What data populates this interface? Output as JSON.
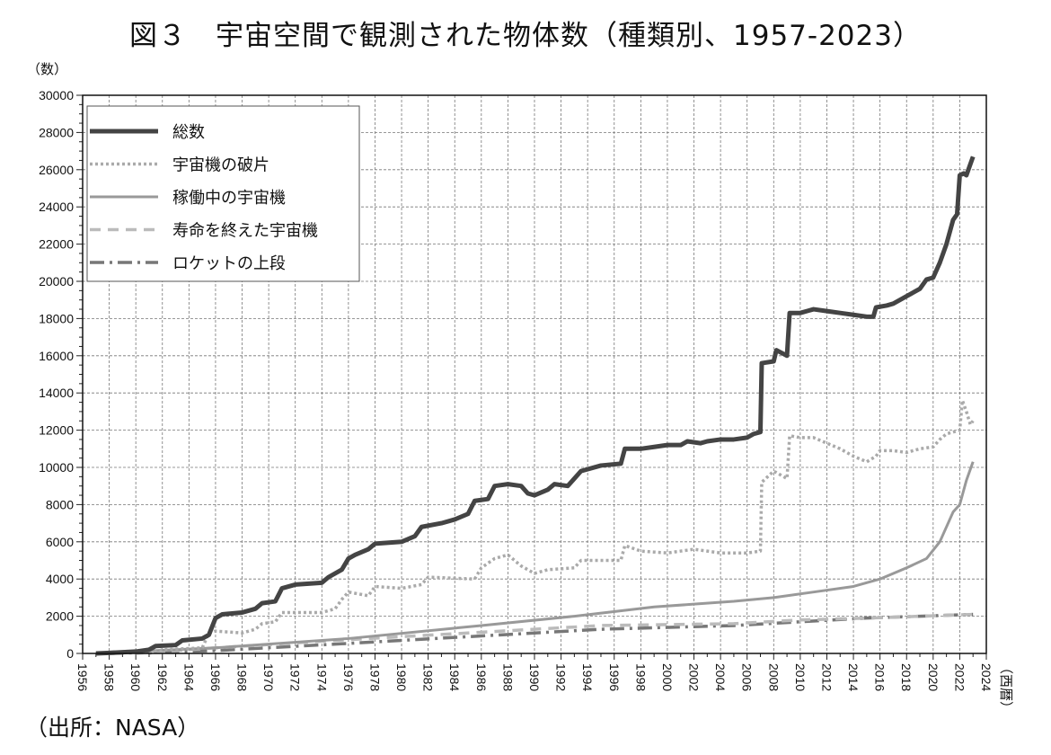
{
  "chart_data": {
    "type": "line",
    "title": "図３　宇宙空間で観測された物体数（種類別、1957-2023）",
    "ylabel": "（数）",
    "xlabel": "（西暦）",
    "source": "（出所：NASA）",
    "xlim": [
      1956,
      2024
    ],
    "ylim": [
      0,
      30000
    ],
    "xticks": [
      1956,
      1958,
      1960,
      1962,
      1964,
      1966,
      1968,
      1970,
      1972,
      1974,
      1976,
      1978,
      1980,
      1982,
      1984,
      1986,
      1988,
      1990,
      1992,
      1994,
      1996,
      1998,
      2000,
      2002,
      2004,
      2006,
      2008,
      2010,
      2012,
      2014,
      2016,
      2018,
      2020,
      2022,
      2024
    ],
    "yticks": [
      0,
      2000,
      4000,
      6000,
      8000,
      10000,
      12000,
      14000,
      16000,
      18000,
      20000,
      22000,
      24000,
      26000,
      28000,
      30000
    ],
    "grid": true,
    "legend_position": "top-left",
    "series": [
      {
        "name": "総数",
        "color": "#444444",
        "style": "solid-thick",
        "points": [
          [
            1957,
            0
          ],
          [
            1958,
            30
          ],
          [
            1960,
            100
          ],
          [
            1961,
            200
          ],
          [
            1961.5,
            400
          ],
          [
            1963,
            450
          ],
          [
            1963.5,
            700
          ],
          [
            1965,
            800
          ],
          [
            1965.5,
            1000
          ],
          [
            1966,
            1900
          ],
          [
            1966.5,
            2100
          ],
          [
            1968,
            2200
          ],
          [
            1969,
            2400
          ],
          [
            1969.5,
            2700
          ],
          [
            1970.5,
            2800
          ],
          [
            1971,
            3500
          ],
          [
            1972,
            3700
          ],
          [
            1974,
            3800
          ],
          [
            1974.5,
            4100
          ],
          [
            1975.5,
            4500
          ],
          [
            1976,
            5100
          ],
          [
            1976.5,
            5300
          ],
          [
            1977.5,
            5600
          ],
          [
            1978,
            5900
          ],
          [
            1980,
            6000
          ],
          [
            1981,
            6300
          ],
          [
            1981.5,
            6800
          ],
          [
            1983,
            7000
          ],
          [
            1984,
            7200
          ],
          [
            1985,
            7500
          ],
          [
            1985.5,
            8200
          ],
          [
            1986.5,
            8300
          ],
          [
            1987,
            9000
          ],
          [
            1988,
            9100
          ],
          [
            1989,
            9000
          ],
          [
            1989.5,
            8600
          ],
          [
            1990,
            8500
          ],
          [
            1991,
            8800
          ],
          [
            1991.5,
            9100
          ],
          [
            1992.5,
            9000
          ],
          [
            1993,
            9400
          ],
          [
            1993.5,
            9800
          ],
          [
            1995,
            10100
          ],
          [
            1996.5,
            10200
          ],
          [
            1996.8,
            11000
          ],
          [
            1998,
            11000
          ],
          [
            1999,
            11100
          ],
          [
            2000,
            11200
          ],
          [
            2001,
            11200
          ],
          [
            2001.5,
            11400
          ],
          [
            2002.5,
            11300
          ],
          [
            2003,
            11400
          ],
          [
            2004,
            11500
          ],
          [
            2005,
            11500
          ],
          [
            2006,
            11600
          ],
          [
            2006.5,
            11800
          ],
          [
            2007,
            11900
          ],
          [
            2007.1,
            15600
          ],
          [
            2008,
            15700
          ],
          [
            2008.2,
            16300
          ],
          [
            2009,
            16000
          ],
          [
            2009.2,
            18300
          ],
          [
            2010,
            18300
          ],
          [
            2010.5,
            18400
          ],
          [
            2011,
            18500
          ],
          [
            2012,
            18400
          ],
          [
            2013,
            18300
          ],
          [
            2014,
            18200
          ],
          [
            2015,
            18100
          ],
          [
            2015.5,
            18100
          ],
          [
            2015.7,
            18600
          ],
          [
            2016.5,
            18700
          ],
          [
            2017,
            18800
          ],
          [
            2018,
            19200
          ],
          [
            2019,
            19600
          ],
          [
            2019.5,
            20100
          ],
          [
            2020,
            20200
          ],
          [
            2020.5,
            21000
          ],
          [
            2021,
            22000
          ],
          [
            2021.5,
            23300
          ],
          [
            2021.8,
            23600
          ],
          [
            2022,
            25700
          ],
          [
            2022.3,
            25800
          ],
          [
            2022.5,
            25700
          ],
          [
            2023,
            26700
          ]
        ]
      },
      {
        "name": "宇宙機の破片",
        "color": "#aaaaaa",
        "style": "dotted",
        "points": [
          [
            1961,
            0
          ],
          [
            1962,
            200
          ],
          [
            1965,
            300
          ],
          [
            1965.5,
            1100
          ],
          [
            1966,
            1200
          ],
          [
            1968,
            1100
          ],
          [
            1969,
            1300
          ],
          [
            1969.5,
            1600
          ],
          [
            1970.5,
            1700
          ],
          [
            1971,
            2200
          ],
          [
            1974,
            2200
          ],
          [
            1975,
            2400
          ],
          [
            1975.5,
            2900
          ],
          [
            1976,
            3300
          ],
          [
            1977.5,
            3100
          ],
          [
            1978,
            3600
          ],
          [
            1980,
            3500
          ],
          [
            1981.5,
            3700
          ],
          [
            1982,
            4100
          ],
          [
            1985.5,
            4000
          ],
          [
            1986,
            4600
          ],
          [
            1987,
            5100
          ],
          [
            1988,
            5300
          ],
          [
            1989,
            4700
          ],
          [
            1990,
            4300
          ],
          [
            1991,
            4500
          ],
          [
            1993,
            4600
          ],
          [
            1993.5,
            5000
          ],
          [
            1996.5,
            5000
          ],
          [
            1996.8,
            5800
          ],
          [
            1998,
            5500
          ],
          [
            2000,
            5400
          ],
          [
            2002,
            5600
          ],
          [
            2004,
            5400
          ],
          [
            2006,
            5400
          ],
          [
            2007,
            5500
          ],
          [
            2007.1,
            9200
          ],
          [
            2008,
            9800
          ],
          [
            2009,
            9400
          ],
          [
            2009.2,
            11700
          ],
          [
            2010,
            11600
          ],
          [
            2011,
            11600
          ],
          [
            2012,
            11300
          ],
          [
            2013,
            11000
          ],
          [
            2014,
            10600
          ],
          [
            2015,
            10300
          ],
          [
            2015.7,
            10600
          ],
          [
            2016,
            10900
          ],
          [
            2017,
            10900
          ],
          [
            2018,
            10800
          ],
          [
            2019,
            11000
          ],
          [
            2020,
            11100
          ],
          [
            2020.5,
            11500
          ],
          [
            2021,
            11800
          ],
          [
            2022,
            12000
          ],
          [
            2022.2,
            13600
          ],
          [
            2022.5,
            13000
          ],
          [
            2022.8,
            12300
          ],
          [
            2023,
            12500
          ]
        ]
      },
      {
        "name": "稼働中の宇宙機",
        "color": "#999999",
        "style": "solid",
        "points": [
          [
            1957,
            0
          ],
          [
            1966,
            300
          ],
          [
            1976,
            800
          ],
          [
            1986,
            1500
          ],
          [
            1993,
            2000
          ],
          [
            1999,
            2500
          ],
          [
            2005,
            2800
          ],
          [
            2008,
            3000
          ],
          [
            2011,
            3300
          ],
          [
            2014,
            3600
          ],
          [
            2016,
            4000
          ],
          [
            2018,
            4600
          ],
          [
            2019.5,
            5100
          ],
          [
            2020.5,
            6000
          ],
          [
            2021.5,
            7600
          ],
          [
            2022,
            8000
          ],
          [
            2022.5,
            9300
          ],
          [
            2023,
            10300
          ]
        ]
      },
      {
        "name": "寿命を終えた宇宙機",
        "color": "#bbbbbb",
        "style": "dashed",
        "points": [
          [
            1960,
            0
          ],
          [
            1966,
            300
          ],
          [
            1975,
            700
          ],
          [
            1985,
            1100
          ],
          [
            1995,
            1500
          ],
          [
            2005,
            1600
          ],
          [
            2010,
            1800
          ],
          [
            2015,
            1900
          ],
          [
            2023,
            2100
          ]
        ]
      },
      {
        "name": "ロケットの上段",
        "color": "#777777",
        "style": "dashdot",
        "points": [
          [
            1958,
            0
          ],
          [
            1966,
            150
          ],
          [
            1975,
            500
          ],
          [
            1985,
            900
          ],
          [
            1995,
            1300
          ],
          [
            2005,
            1500
          ],
          [
            2010,
            1700
          ],
          [
            2015,
            1900
          ],
          [
            2023,
            2100
          ]
        ]
      }
    ]
  }
}
